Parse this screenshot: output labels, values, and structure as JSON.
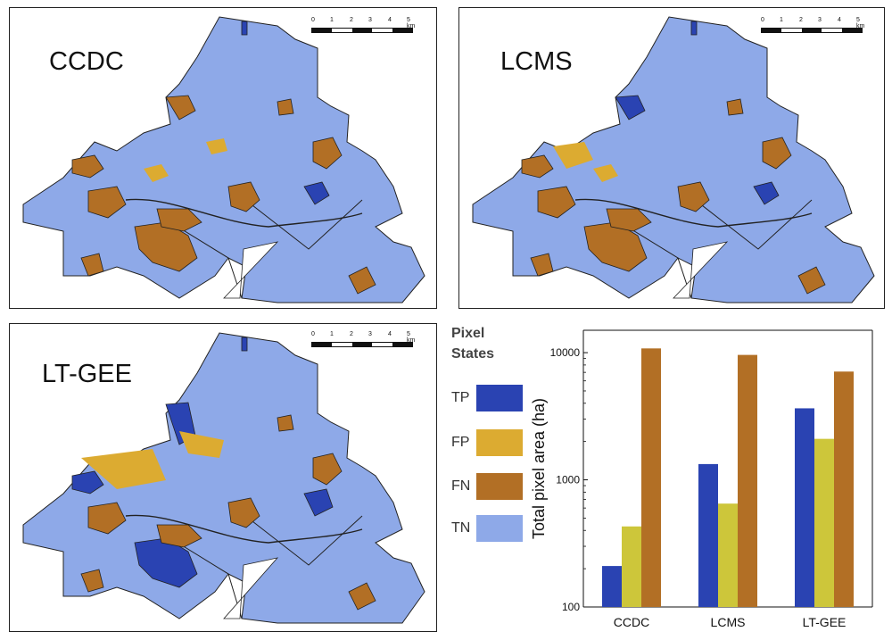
{
  "panels": [
    {
      "title": "CCDC"
    },
    {
      "title": "LCMS"
    },
    {
      "title": "LT-GEE"
    }
  ],
  "scalebar": {
    "ticks": [
      "0",
      "1",
      "2",
      "3",
      "4",
      "5 km"
    ]
  },
  "legend": {
    "title_line1": "Pixel",
    "title_line2": "States",
    "items": [
      {
        "label": "TP",
        "color": "#2a43b2"
      },
      {
        "label": "FP",
        "color": "#dcab31"
      },
      {
        "label": "FN",
        "color": "#b26f25"
      },
      {
        "label": "TN",
        "color": "#8ea9e8"
      }
    ]
  },
  "chart_data": {
    "type": "bar",
    "categories": [
      "CCDC",
      "LCMS",
      "LT-GEE"
    ],
    "series": [
      {
        "values": [
          210,
          1330,
          3650
        ],
        "color": "#2a43b2"
      },
      {
        "values": [
          430,
          650,
          2100
        ],
        "color": "#cdc63a"
      },
      {
        "values": [
          10800,
          9600,
          7100
        ],
        "color": "#b26f25"
      }
    ],
    "ylabel": "Total pixel area (ha)",
    "yscale": "log",
    "ylim": [
      100,
      15000
    ],
    "yticks": [
      "100",
      "1000",
      "10000"
    ]
  }
}
